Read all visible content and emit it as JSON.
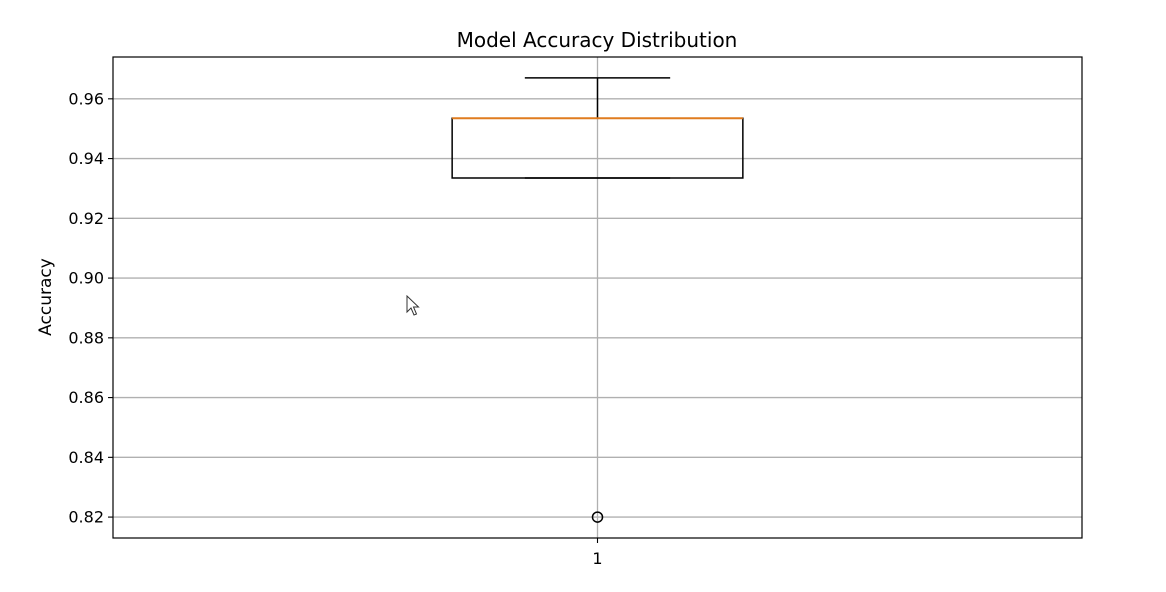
{
  "chart_data": {
    "type": "box",
    "title": "Model Accuracy Distribution",
    "xlabel": "",
    "ylabel": "Accuracy",
    "categories": [
      "1"
    ],
    "boxes": [
      {
        "category": "1",
        "whisker_low": 0.9335,
        "q1": 0.9335,
        "median": 0.9535,
        "q3": 0.9535,
        "whisker_high": 0.967,
        "outliers": [
          0.82
        ]
      }
    ],
    "ylim": [
      0.813,
      0.974
    ],
    "yticks": [
      0.82,
      0.84,
      0.86,
      0.88,
      0.9,
      0.92,
      0.94,
      0.96
    ],
    "ytick_labels": [
      "0.82",
      "0.84",
      "0.86",
      "0.88",
      "0.90",
      "0.92",
      "0.94",
      "0.96"
    ],
    "grid": true,
    "colors": {
      "median": "#e07c1f",
      "box": "#000000",
      "grid": "#b0b0b0"
    }
  },
  "cursor_icon": "mouse-pointer-icon"
}
